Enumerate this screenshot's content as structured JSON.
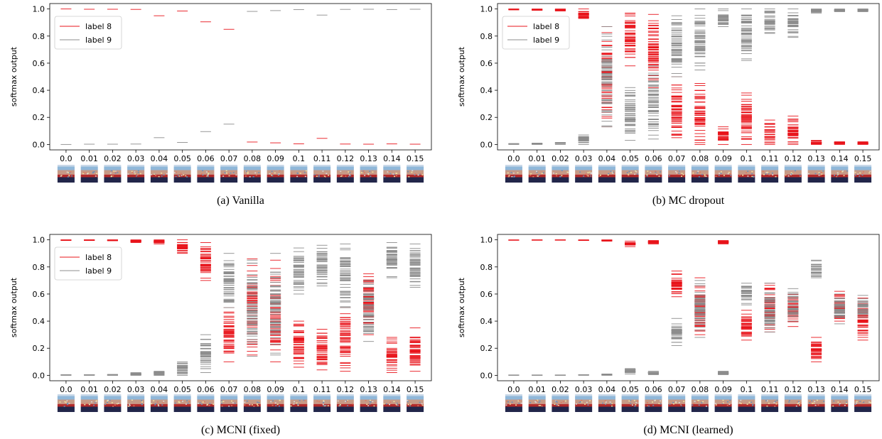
{
  "colors": {
    "label8": "#e8141b",
    "label9": "#8c8c8c",
    "thumb_sky": "#8fb7d9",
    "thumb_top": "#c9d8e8",
    "thumb_mid": "#c79a86",
    "thumb_red": "#b32a2a",
    "thumb_dark": "#22264a"
  },
  "thumbnail_icon": "image-thumbnail",
  "chart_data": [
    {
      "type": "scatter",
      "subtype": "horizontal-line-strip",
      "caption": "(a) Vanilla",
      "ylabel": "softmax output",
      "ylim": [
        -0.04,
        1.04
      ],
      "yticks": [
        "0.0",
        "0.2",
        "0.4",
        "0.6",
        "0.8",
        "1.0"
      ],
      "categories": [
        "0.0",
        "0.01",
        "0.02",
        "0.03",
        "0.04",
        "0.05",
        "0.06",
        "0.07",
        "0.08",
        "0.09",
        "0.1",
        "0.11",
        "0.12",
        "0.13",
        "0.14",
        "0.15"
      ],
      "legend": {
        "show": true,
        "position": "upper-left",
        "entries": [
          "label 8",
          "label 9"
        ]
      },
      "series": [
        {
          "name": "label 8",
          "colorKey": "label8",
          "samples": [
            [
              1.0
            ],
            [
              0.998
            ],
            [
              0.998
            ],
            [
              0.997
            ],
            [
              0.95
            ],
            [
              0.985
            ],
            [
              0.905
            ],
            [
              0.85
            ],
            [
              0.018
            ],
            [
              0.012
            ],
            [
              0.005
            ],
            [
              0.045
            ],
            [
              0.003
            ],
            [
              0.002
            ],
            [
              0.004
            ],
            [
              0.002
            ]
          ]
        },
        {
          "name": "label 9",
          "colorKey": "label9",
          "samples": [
            [
              0.0
            ],
            [
              0.002
            ],
            [
              0.002
            ],
            [
              0.003
            ],
            [
              0.05
            ],
            [
              0.015
            ],
            [
              0.095
            ],
            [
              0.15
            ],
            [
              0.982
            ],
            [
              0.988
            ],
            [
              0.995
            ],
            [
              0.955
            ],
            [
              0.997
            ],
            [
              0.998
            ],
            [
              0.996
            ],
            [
              0.998
            ]
          ]
        }
      ]
    },
    {
      "type": "scatter",
      "subtype": "horizontal-line-strip",
      "caption": "(b) MC dropout",
      "ylabel": "softmax output",
      "ylim": [
        -0.04,
        1.04
      ],
      "yticks": [
        "0.0",
        "0.2",
        "0.4",
        "0.6",
        "0.8",
        "1.0"
      ],
      "categories": [
        "0.0",
        "0.01",
        "0.02",
        "0.03",
        "0.04",
        "0.05",
        "0.06",
        "0.07",
        "0.08",
        "0.09",
        "0.1",
        "0.11",
        "0.12",
        "0.13",
        "0.14",
        "0.15"
      ],
      "legend": {
        "show": true,
        "position": "upper-left",
        "entries": [
          "label 8",
          "label 9"
        ]
      },
      "series": [
        {
          "name": "label 8",
          "colorKey": "label8",
          "ranges": [
            [
              0.993,
              1.0
            ],
            [
              0.99,
              1.0
            ],
            [
              0.985,
              1.0
            ],
            [
              0.93,
              1.0
            ],
            [
              0.13,
              0.87
            ],
            [
              0.58,
              0.97
            ],
            [
              0.42,
              0.96
            ],
            [
              0.05,
              0.5
            ],
            [
              0.0,
              0.45
            ],
            [
              0.0,
              0.13
            ],
            [
              0.0,
              0.38
            ],
            [
              0.0,
              0.18
            ],
            [
              0.0,
              0.21
            ],
            [
              0.0,
              0.03
            ],
            [
              0.0,
              0.02
            ],
            [
              0.0,
              0.02
            ]
          ]
        },
        {
          "name": "label 9",
          "colorKey": "label9",
          "ranges": [
            [
              0.0,
              0.007
            ],
            [
              0.0,
              0.01
            ],
            [
              0.0,
              0.015
            ],
            [
              0.0,
              0.07
            ],
            [
              0.13,
              0.87
            ],
            [
              0.03,
              0.42
            ],
            [
              0.04,
              0.58
            ],
            [
              0.5,
              0.95
            ],
            [
              0.55,
              1.0
            ],
            [
              0.87,
              1.0
            ],
            [
              0.62,
              1.0
            ],
            [
              0.82,
              1.0
            ],
            [
              0.79,
              1.0
            ],
            [
              0.97,
              1.0
            ],
            [
              0.98,
              1.0
            ],
            [
              0.98,
              1.0
            ]
          ]
        }
      ]
    },
    {
      "type": "scatter",
      "subtype": "horizontal-line-strip",
      "caption": "(c) MCNI (fixed)",
      "ylabel": "softmax output",
      "ylim": [
        -0.04,
        1.04
      ],
      "yticks": [
        "0.0",
        "0.2",
        "0.4",
        "0.6",
        "0.8",
        "1.0"
      ],
      "categories": [
        "0.0",
        "0.01",
        "0.02",
        "0.03",
        "0.04",
        "0.05",
        "0.06",
        "0.07",
        "0.08",
        "0.09",
        "0.1",
        "0.11",
        "0.12",
        "0.13",
        "0.14",
        "0.15"
      ],
      "legend": {
        "show": true,
        "position": "upper-left",
        "entries": [
          "label 8",
          "label 9"
        ]
      },
      "series": [
        {
          "name": "label 8",
          "colorKey": "label8",
          "ranges": [
            [
              0.995,
              1.0
            ],
            [
              0.995,
              1.0
            ],
            [
              0.993,
              1.0
            ],
            [
              0.98,
              1.0
            ],
            [
              0.97,
              1.0
            ],
            [
              0.9,
              1.0
            ],
            [
              0.7,
              0.98
            ],
            [
              0.1,
              0.5
            ],
            [
              0.15,
              0.86
            ],
            [
              0.1,
              0.85
            ],
            [
              0.06,
              0.4
            ],
            [
              0.04,
              0.34
            ],
            [
              0.03,
              0.5
            ],
            [
              0.3,
              0.75
            ],
            [
              0.02,
              0.28
            ],
            [
              0.03,
              0.35
            ]
          ]
        },
        {
          "name": "label 9",
          "colorKey": "label9",
          "ranges": [
            [
              0.0,
              0.005
            ],
            [
              0.0,
              0.005
            ],
            [
              0.0,
              0.007
            ],
            [
              0.0,
              0.02
            ],
            [
              0.0,
              0.03
            ],
            [
              0.0,
              0.1
            ],
            [
              0.02,
              0.3
            ],
            [
              0.5,
              0.9
            ],
            [
              0.14,
              0.85
            ],
            [
              0.15,
              0.9
            ],
            [
              0.6,
              0.94
            ],
            [
              0.66,
              0.96
            ],
            [
              0.5,
              0.97
            ],
            [
              0.25,
              0.7
            ],
            [
              0.72,
              0.98
            ],
            [
              0.65,
              0.97
            ]
          ]
        }
      ]
    },
    {
      "type": "scatter",
      "subtype": "horizontal-line-strip",
      "caption": "(d) MCNI (learned)",
      "ylabel": "softmax output",
      "ylim": [
        -0.04,
        1.04
      ],
      "yticks": [
        "0.0",
        "0.2",
        "0.4",
        "0.6",
        "0.8",
        "1.0"
      ],
      "categories": [
        "0.0",
        "0.01",
        "0.02",
        "0.03",
        "0.04",
        "0.05",
        "0.06",
        "0.07",
        "0.08",
        "0.09",
        "0.1",
        "0.11",
        "0.12",
        "0.13",
        "0.14",
        "0.15"
      ],
      "legend": {
        "show": false
      },
      "series": [
        {
          "name": "label 8",
          "colorKey": "label8",
          "ranges": [
            [
              0.997,
              1.0
            ],
            [
              0.997,
              1.0
            ],
            [
              0.997,
              1.0
            ],
            [
              0.995,
              1.0
            ],
            [
              0.99,
              1.0
            ],
            [
              0.95,
              0.99
            ],
            [
              0.97,
              0.995
            ],
            [
              0.58,
              0.77
            ],
            [
              0.3,
              0.72
            ],
            [
              0.97,
              0.995
            ],
            [
              0.26,
              0.48
            ],
            [
              0.32,
              0.68
            ],
            [
              0.36,
              0.6
            ],
            [
              0.1,
              0.28
            ],
            [
              0.4,
              0.62
            ],
            [
              0.26,
              0.57
            ]
          ]
        },
        {
          "name": "label 9",
          "colorKey": "label9",
          "ranges": [
            [
              0.0,
              0.003
            ],
            [
              0.0,
              0.003
            ],
            [
              0.0,
              0.003
            ],
            [
              0.0,
              0.005
            ],
            [
              0.0,
              0.01
            ],
            [
              0.01,
              0.05
            ],
            [
              0.005,
              0.03
            ],
            [
              0.22,
              0.42
            ],
            [
              0.28,
              0.7
            ],
            [
              0.005,
              0.03
            ],
            [
              0.52,
              0.68
            ],
            [
              0.32,
              0.68
            ],
            [
              0.4,
              0.64
            ],
            [
              0.72,
              0.85
            ],
            [
              0.38,
              0.6
            ],
            [
              0.43,
              0.59
            ]
          ]
        }
      ]
    }
  ]
}
